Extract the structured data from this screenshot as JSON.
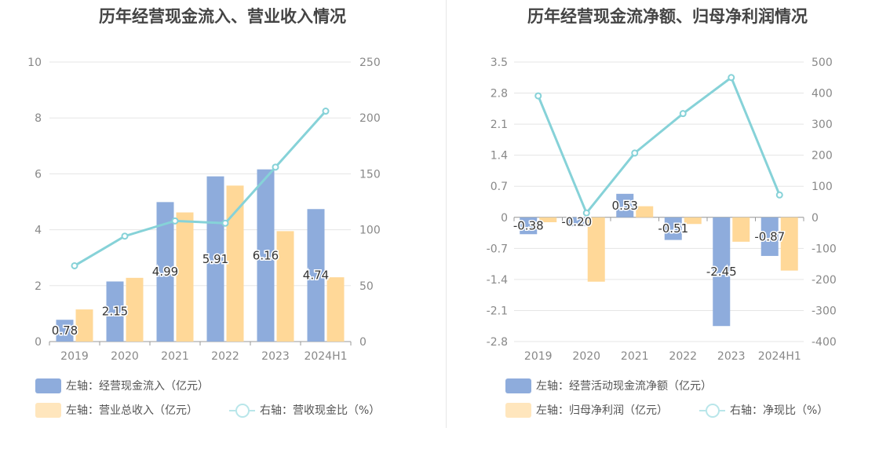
{
  "colors": {
    "cash_bar": "#8eacdc",
    "revenue_bar": "#ffd898",
    "line": "#86d2d8",
    "grid": "#e5e5e5",
    "axis": "#999999"
  },
  "chart_data": [
    {
      "type": "bar",
      "title": "历年经营现金流入、营业收入情况",
      "categories": [
        "2019",
        "2020",
        "2021",
        "2022",
        "2023",
        "2024H1"
      ],
      "left_axis": {
        "min": 0,
        "max": 10,
        "ticks": [
          "0",
          "2",
          "4",
          "6",
          "8",
          "10"
        ]
      },
      "right_axis": {
        "min": 0,
        "max": 250,
        "ticks": [
          "0",
          "50",
          "100",
          "150",
          "200",
          "250"
        ]
      },
      "series": [
        {
          "name": "左轴：经营现金流入（亿元）",
          "kind": "bar",
          "axis": "left",
          "values": [
            0.78,
            2.15,
            4.99,
            5.91,
            6.16,
            4.74
          ],
          "labels": [
            "0.78",
            "2.15",
            "4.99",
            "5.91",
            "6.16",
            "4.74"
          ]
        },
        {
          "name": "左轴：营业总收入（亿元）",
          "kind": "bar",
          "axis": "left",
          "values": [
            1.15,
            2.28,
            4.62,
            5.58,
            3.95,
            2.3
          ]
        },
        {
          "name": "右轴：营收现金比（%）",
          "kind": "line",
          "axis": "right",
          "values": [
            67.8,
            94.3,
            107.9,
            105.9,
            156.0,
            206.1
          ]
        }
      ]
    },
    {
      "type": "bar",
      "title": "历年经营现金流净额、归母净利润情况",
      "categories": [
        "2019",
        "2020",
        "2021",
        "2022",
        "2023",
        "2024H1"
      ],
      "left_axis": {
        "min": -2.8,
        "max": 3.5,
        "ticks": [
          "-2.8",
          "-2.1",
          "-1.4",
          "-0.7",
          "0",
          "0.7",
          "1.4",
          "2.1",
          "2.8",
          "3.5"
        ]
      },
      "right_axis": {
        "min": -400,
        "max": 500,
        "ticks": [
          "-400",
          "-300",
          "-200",
          "-100",
          "0",
          "100",
          "200",
          "300",
          "400",
          "500"
        ]
      },
      "series": [
        {
          "name": "左轴：经营活动现金流净额（亿元）",
          "kind": "bar",
          "axis": "left",
          "values": [
            -0.38,
            -0.2,
            0.53,
            -0.51,
            -2.45,
            -0.87
          ],
          "labels": [
            "-0.38",
            "-0.20",
            "0.53",
            "-0.51",
            "-2.45",
            "-0.87"
          ]
        },
        {
          "name": "左轴：归母净利润（亿元）",
          "kind": "bar",
          "axis": "left",
          "values": [
            -0.11,
            -1.45,
            0.25,
            -0.15,
            -0.55,
            -1.2
          ]
        },
        {
          "name": "右轴：净现比（%）",
          "kind": "line",
          "axis": "right",
          "values": [
            391,
            14,
            207,
            334,
            450,
            72
          ]
        }
      ]
    }
  ]
}
